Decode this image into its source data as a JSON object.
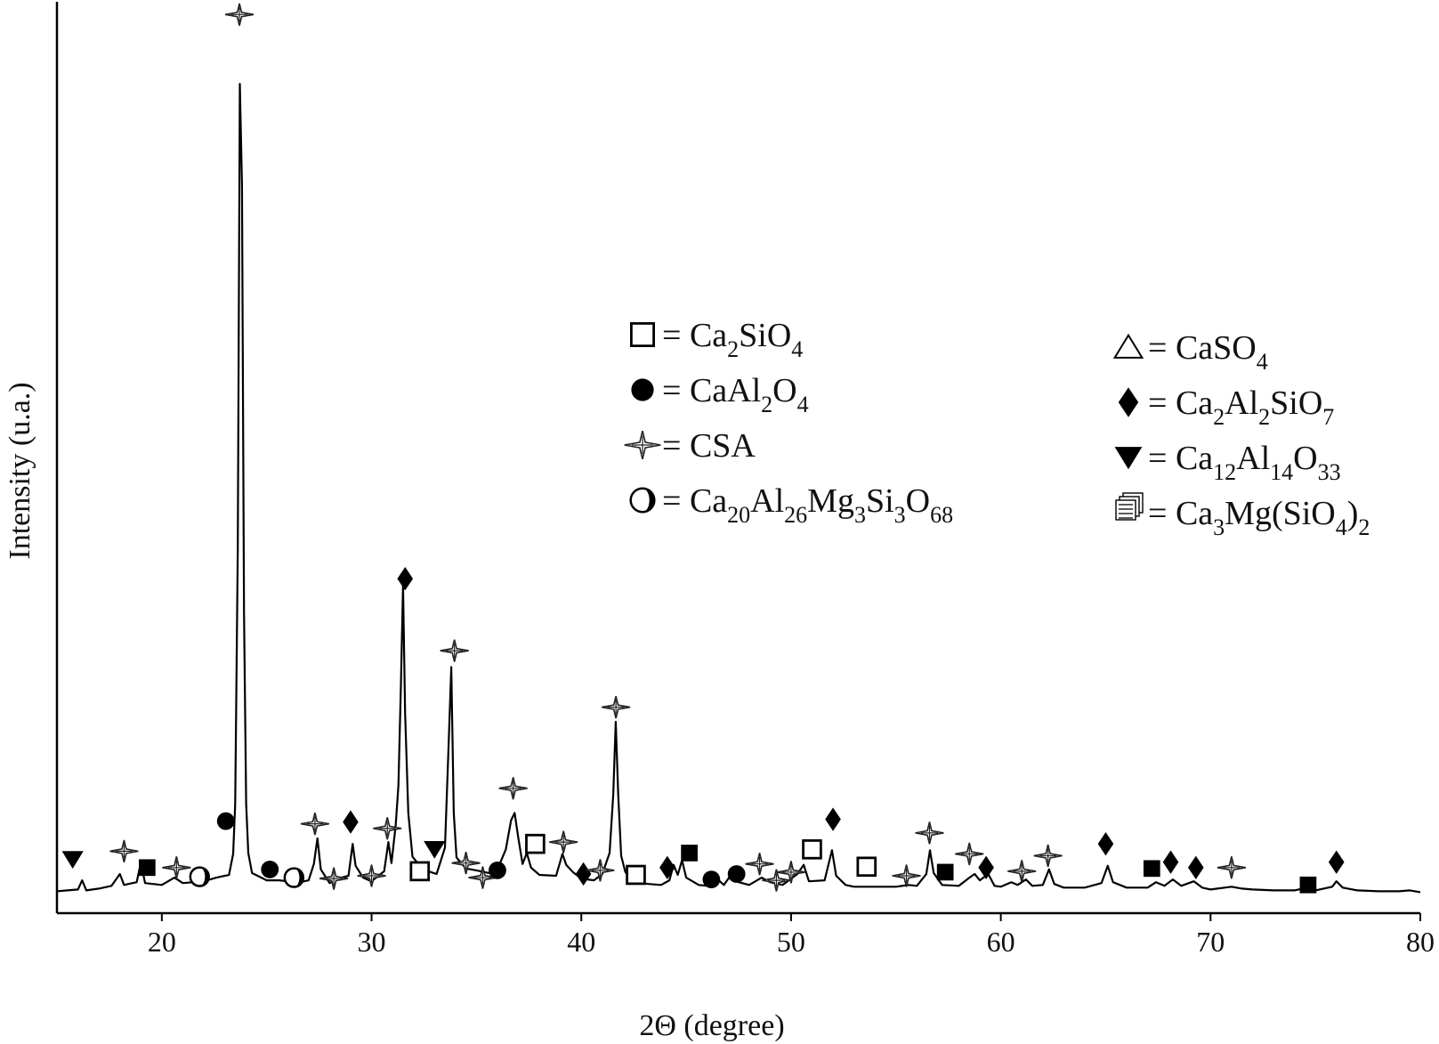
{
  "chart_data": {
    "type": "line",
    "xlabel": "2Θ (degree)",
    "ylabel": "Intensity (u.a.)",
    "xlim": [
      15,
      80
    ],
    "ylim": [
      0,
      100
    ],
    "x_ticks": [
      "20",
      "30",
      "40",
      "50",
      "60",
      "70",
      "80"
    ],
    "series": [
      {
        "pattern": [
          [
            15,
            2.4
          ],
          [
            16,
            2.6
          ],
          [
            16.2,
            3.6
          ],
          [
            16.4,
            2.5
          ],
          [
            17,
            2.7
          ],
          [
            17.6,
            3.0
          ],
          [
            18.0,
            4.3
          ],
          [
            18.2,
            3.1
          ],
          [
            18.8,
            3.4
          ],
          [
            19.0,
            5.6
          ],
          [
            19.2,
            3.3
          ],
          [
            20,
            3.1
          ],
          [
            20.6,
            3.9
          ],
          [
            21,
            3.3
          ],
          [
            22,
            3.5
          ],
          [
            22.6,
            3.9
          ],
          [
            23.2,
            4.2
          ],
          [
            23.4,
            6.5
          ],
          [
            23.5,
            12
          ],
          [
            23.62,
            40
          ],
          [
            23.72,
            91
          ],
          [
            23.82,
            80
          ],
          [
            23.92,
            33
          ],
          [
            24.02,
            12
          ],
          [
            24.12,
            6.6
          ],
          [
            24.3,
            4.4
          ],
          [
            25,
            3.6
          ],
          [
            25.6,
            3.6
          ],
          [
            26,
            3.5
          ],
          [
            26.6,
            3.4
          ],
          [
            27,
            3.6
          ],
          [
            27.25,
            5.4
          ],
          [
            27.42,
            8.2
          ],
          [
            27.58,
            4.8
          ],
          [
            28,
            3.3
          ],
          [
            28.4,
            3.8
          ],
          [
            28.9,
            4.1
          ],
          [
            29.1,
            7.6
          ],
          [
            29.24,
            5.2
          ],
          [
            29.6,
            3.9
          ],
          [
            30,
            3.5
          ],
          [
            30.6,
            4.6
          ],
          [
            30.8,
            7.8
          ],
          [
            30.95,
            5.5
          ],
          [
            31.15,
            9.6
          ],
          [
            31.28,
            14
          ],
          [
            31.4,
            25
          ],
          [
            31.5,
            36
          ],
          [
            31.6,
            22
          ],
          [
            31.75,
            11
          ],
          [
            31.95,
            6.2
          ],
          [
            32.3,
            5.2
          ],
          [
            32.7,
            4.6
          ],
          [
            33.1,
            4.3
          ],
          [
            33.5,
            7.2
          ],
          [
            33.68,
            19
          ],
          [
            33.8,
            27
          ],
          [
            33.92,
            11
          ],
          [
            34.05,
            6.1
          ],
          [
            34.5,
            4.9
          ],
          [
            35,
            4.7
          ],
          [
            35.6,
            4.4
          ],
          [
            36,
            4.8
          ],
          [
            36.4,
            7.0
          ],
          [
            36.65,
            10.2
          ],
          [
            36.82,
            11.0
          ],
          [
            37.0,
            8.2
          ],
          [
            37.2,
            5.4
          ],
          [
            37.4,
            6.6
          ],
          [
            37.6,
            5.0
          ],
          [
            38,
            4.2
          ],
          [
            38.8,
            4.1
          ],
          [
            39.1,
            6.5
          ],
          [
            39.28,
            5.3
          ],
          [
            39.6,
            4.5
          ],
          [
            40,
            3.8
          ],
          [
            40.6,
            3.6
          ],
          [
            41,
            4.3
          ],
          [
            41.35,
            6.6
          ],
          [
            41.52,
            13
          ],
          [
            41.64,
            21
          ],
          [
            41.76,
            13
          ],
          [
            41.9,
            6.3
          ],
          [
            42.1,
            4.5
          ],
          [
            42.6,
            3.4
          ],
          [
            43.2,
            3.2
          ],
          [
            43.8,
            3.1
          ],
          [
            44.2,
            3.6
          ],
          [
            44.4,
            5.3
          ],
          [
            44.6,
            4.2
          ],
          [
            44.8,
            5.8
          ],
          [
            45.0,
            3.9
          ],
          [
            45.6,
            3.1
          ],
          [
            46,
            3.0
          ],
          [
            46.4,
            3.9
          ],
          [
            46.8,
            3.1
          ],
          [
            47.2,
            4.4
          ],
          [
            47.5,
            3.4
          ],
          [
            48,
            3.1
          ],
          [
            48.6,
            3.9
          ],
          [
            49,
            3.4
          ],
          [
            49.6,
            3.1
          ],
          [
            50.3,
            4.3
          ],
          [
            50.6,
            5.3
          ],
          [
            50.85,
            3.5
          ],
          [
            51.6,
            3.6
          ],
          [
            51.95,
            6.9
          ],
          [
            52.15,
            4.1
          ],
          [
            52.6,
            3.1
          ],
          [
            53,
            2.9
          ],
          [
            54,
            2.9
          ],
          [
            55,
            2.9
          ],
          [
            55.6,
            3.1
          ],
          [
            56,
            3.0
          ],
          [
            56.45,
            4.3
          ],
          [
            56.62,
            6.9
          ],
          [
            56.8,
            4.4
          ],
          [
            57.2,
            3.1
          ],
          [
            58,
            3.0
          ],
          [
            58.5,
            3.9
          ],
          [
            58.75,
            4.3
          ],
          [
            59.0,
            3.6
          ],
          [
            59.4,
            4.3
          ],
          [
            59.7,
            3.0
          ],
          [
            60,
            2.9
          ],
          [
            60.5,
            3.4
          ],
          [
            60.8,
            3.1
          ],
          [
            61.2,
            3.7
          ],
          [
            61.5,
            3.0
          ],
          [
            62,
            3.1
          ],
          [
            62.3,
            4.8
          ],
          [
            62.55,
            3.2
          ],
          [
            63,
            2.8
          ],
          [
            64,
            2.8
          ],
          [
            64.8,
            3.3
          ],
          [
            65.1,
            5.2
          ],
          [
            65.35,
            3.4
          ],
          [
            66,
            2.8
          ],
          [
            67,
            2.8
          ],
          [
            67.4,
            3.4
          ],
          [
            67.8,
            3.0
          ],
          [
            68.2,
            3.7
          ],
          [
            68.6,
            3.0
          ],
          [
            69.2,
            3.5
          ],
          [
            69.6,
            2.8
          ],
          [
            70,
            2.6
          ],
          [
            71,
            2.9
          ],
          [
            71.5,
            2.7
          ],
          [
            72,
            2.6
          ],
          [
            73,
            2.5
          ],
          [
            74,
            2.5
          ],
          [
            74.6,
            2.8
          ],
          [
            75,
            2.5
          ],
          [
            75.8,
            2.9
          ],
          [
            76,
            3.5
          ],
          [
            76.3,
            2.8
          ],
          [
            77,
            2.5
          ],
          [
            78,
            2.4
          ],
          [
            79,
            2.4
          ],
          [
            79.5,
            2.5
          ],
          [
            80,
            2.3
          ]
        ]
      }
    ],
    "markers": [
      {
        "x": 15.75,
        "y": 5.9,
        "symbol": "triangle-down"
      },
      {
        "x": 18.2,
        "y": 6.8,
        "symbol": "star"
      },
      {
        "x": 19.3,
        "y": 5.0,
        "symbol": "square-filled"
      },
      {
        "x": 20.7,
        "y": 5.0,
        "symbol": "star"
      },
      {
        "x": 21.8,
        "y": 4.0,
        "symbol": "half-circle"
      },
      {
        "x": 23.05,
        "y": 10.1,
        "symbol": "circle-filled"
      },
      {
        "x": 23.7,
        "y": 98.6,
        "symbol": "star"
      },
      {
        "x": 25.15,
        "y": 4.8,
        "symbol": "circle-filled"
      },
      {
        "x": 26.3,
        "y": 3.9,
        "symbol": "half-circle"
      },
      {
        "x": 27.3,
        "y": 9.8,
        "symbol": "star"
      },
      {
        "x": 28.2,
        "y": 3.8,
        "symbol": "star"
      },
      {
        "x": 29.0,
        "y": 10.0,
        "symbol": "diamond"
      },
      {
        "x": 30.0,
        "y": 4.1,
        "symbol": "star"
      },
      {
        "x": 30.75,
        "y": 9.3,
        "symbol": "star"
      },
      {
        "x": 31.6,
        "y": 36.7,
        "symbol": "diamond"
      },
      {
        "x": 32.3,
        "y": 4.6,
        "symbol": "square-open"
      },
      {
        "x": 33.0,
        "y": 7.0,
        "symbol": "triangle-down"
      },
      {
        "x": 33.95,
        "y": 28.8,
        "symbol": "star"
      },
      {
        "x": 34.5,
        "y": 5.5,
        "symbol": "star"
      },
      {
        "x": 35.3,
        "y": 3.9,
        "symbol": "star"
      },
      {
        "x": 36.0,
        "y": 4.7,
        "symbol": "circle-filled"
      },
      {
        "x": 36.75,
        "y": 13.7,
        "symbol": "star"
      },
      {
        "x": 37.8,
        "y": 7.6,
        "symbol": "square-open"
      },
      {
        "x": 39.15,
        "y": 7.8,
        "symbol": "star"
      },
      {
        "x": 40.1,
        "y": 4.3,
        "symbol": "diamond"
      },
      {
        "x": 40.9,
        "y": 4.7,
        "symbol": "star"
      },
      {
        "x": 41.65,
        "y": 22.6,
        "symbol": "star"
      },
      {
        "x": 42.6,
        "y": 4.2,
        "symbol": "square-open"
      },
      {
        "x": 44.1,
        "y": 5.0,
        "symbol": "diamond"
      },
      {
        "x": 45.15,
        "y": 6.6,
        "symbol": "square-filled"
      },
      {
        "x": 46.2,
        "y": 3.7,
        "symbol": "circle-filled"
      },
      {
        "x": 47.4,
        "y": 4.3,
        "symbol": "circle-filled"
      },
      {
        "x": 48.5,
        "y": 5.4,
        "symbol": "star"
      },
      {
        "x": 49.3,
        "y": 3.6,
        "symbol": "star"
      },
      {
        "x": 50.0,
        "y": 4.5,
        "symbol": "star"
      },
      {
        "x": 51.0,
        "y": 7.0,
        "symbol": "square-open"
      },
      {
        "x": 52.0,
        "y": 10.3,
        "symbol": "diamond"
      },
      {
        "x": 53.6,
        "y": 5.1,
        "symbol": "square-open"
      },
      {
        "x": 55.5,
        "y": 4.1,
        "symbol": "star"
      },
      {
        "x": 56.6,
        "y": 8.8,
        "symbol": "star"
      },
      {
        "x": 57.35,
        "y": 4.5,
        "symbol": "square-filled"
      },
      {
        "x": 58.5,
        "y": 6.5,
        "symbol": "star"
      },
      {
        "x": 59.3,
        "y": 5.0,
        "symbol": "diamond"
      },
      {
        "x": 61.0,
        "y": 4.6,
        "symbol": "star"
      },
      {
        "x": 62.25,
        "y": 6.3,
        "symbol": "star"
      },
      {
        "x": 65.0,
        "y": 7.6,
        "symbol": "diamond"
      },
      {
        "x": 67.2,
        "y": 4.9,
        "symbol": "square-filled"
      },
      {
        "x": 68.1,
        "y": 5.6,
        "symbol": "diamond"
      },
      {
        "x": 69.3,
        "y": 5.0,
        "symbol": "diamond"
      },
      {
        "x": 71.0,
        "y": 5.0,
        "symbol": "star"
      },
      {
        "x": 74.65,
        "y": 3.1,
        "symbol": "square-filled"
      },
      {
        "x": 76.0,
        "y": 5.6,
        "symbol": "diamond"
      }
    ],
    "legend": {
      "left": [
        {
          "symbol": "square-open",
          "label": "= Ca",
          "parts": [
            [
              "Ca",
              ""
            ],
            [
              "2",
              "sub"
            ],
            [
              "SiO",
              ""
            ],
            [
              "4",
              "sub"
            ]
          ]
        },
        {
          "symbol": "circle-filled",
          "label": "= CaAl",
          "parts": [
            [
              "CaAl",
              ""
            ],
            [
              "2",
              "sub"
            ],
            [
              "O",
              ""
            ],
            [
              "4",
              "sub"
            ]
          ]
        },
        {
          "symbol": "star",
          "label": "= CSA",
          "parts": [
            [
              "CSA",
              ""
            ]
          ]
        },
        {
          "symbol": "half-circle",
          "label": "= Ca",
          "parts": [
            [
              "Ca",
              ""
            ],
            [
              "20",
              "sub"
            ],
            [
              "Al",
              ""
            ],
            [
              "26",
              "sub"
            ],
            [
              "Mg",
              ""
            ],
            [
              "3",
              "sub"
            ],
            [
              "Si",
              ""
            ],
            [
              "3",
              "sub"
            ],
            [
              "O",
              ""
            ],
            [
              "68",
              "sub"
            ]
          ]
        }
      ],
      "right": [
        {
          "symbol": "triangle-open",
          "label": "= Ca",
          "parts": [
            [
              "CaSO",
              ""
            ],
            [
              "4",
              "sub"
            ]
          ]
        },
        {
          "symbol": "diamond",
          "label": "= Ca",
          "parts": [
            [
              "Ca",
              ""
            ],
            [
              "2",
              "sub"
            ],
            [
              "Al",
              ""
            ],
            [
              "2",
              "sub"
            ],
            [
              "SiO",
              ""
            ],
            [
              "7",
              "sub"
            ]
          ]
        },
        {
          "symbol": "triangle-down",
          "label": "= Ca",
          "parts": [
            [
              "Ca",
              ""
            ],
            [
              "12",
              "sub"
            ],
            [
              "Al",
              ""
            ],
            [
              "14",
              "sub"
            ],
            [
              "O",
              ""
            ],
            [
              "33",
              "sub"
            ]
          ]
        },
        {
          "symbol": "square-filled",
          "label": "= Ca",
          "parts": [
            [
              "Ca",
              ""
            ],
            [
              "3",
              "sub"
            ],
            [
              "Mg(SiO",
              ""
            ],
            [
              "4",
              "sub"
            ],
            [
              ")",
              ""
            ],
            [
              "2",
              "sub"
            ]
          ]
        }
      ]
    }
  }
}
